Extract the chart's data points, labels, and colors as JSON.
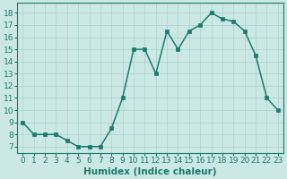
{
  "x": [
    0,
    1,
    2,
    3,
    4,
    5,
    6,
    7,
    8,
    9,
    10,
    11,
    12,
    13,
    14,
    15,
    16,
    17,
    18,
    19,
    20,
    21,
    22,
    23
  ],
  "y": [
    9,
    8,
    8,
    8,
    7.5,
    7,
    7,
    7,
    8.5,
    11,
    15,
    15,
    13,
    16.5,
    15,
    16.5,
    17,
    18,
    17.5,
    17.3,
    16.5,
    14.5,
    11,
    10
  ],
  "line_color": "#1a7a6e",
  "marker_color": "#1a7a6e",
  "background_color": "#cce8e4",
  "grid_color": "#aad0cc",
  "xlabel": "Humidex (Indice chaleur)",
  "ylim": [
    6.5,
    18.8
  ],
  "xlim": [
    -0.5,
    23.5
  ],
  "yticks": [
    7,
    8,
    9,
    10,
    11,
    12,
    13,
    14,
    15,
    16,
    17,
    18
  ],
  "xticks": [
    0,
    1,
    2,
    3,
    4,
    5,
    6,
    7,
    8,
    9,
    10,
    11,
    12,
    13,
    14,
    15,
    16,
    17,
    18,
    19,
    20,
    21,
    22,
    23
  ],
  "tick_color": "#1a7a6e",
  "label_fontsize": 6.5,
  "xlabel_fontsize": 7.5,
  "marker_size": 2.8,
  "line_width": 1.1
}
